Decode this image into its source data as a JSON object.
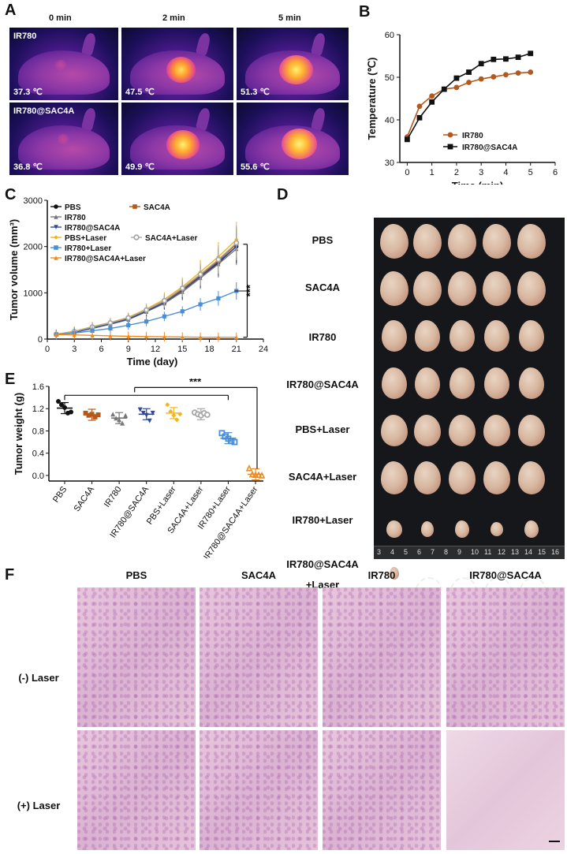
{
  "panels": {
    "A": "A",
    "B": "B",
    "C": "C",
    "D": "D",
    "E": "E",
    "F": "F"
  },
  "panelA": {
    "col_headers": [
      "0 min",
      "2 min",
      "5 min"
    ],
    "row_labels": [
      "IR780",
      "IR780@SAC4A"
    ],
    "temps": [
      [
        "37.3 ℃",
        "47.5 ℃",
        "51.3 ℃"
      ],
      [
        "36.8 ℃",
        "49.9 ℃",
        "55.6 ℃"
      ]
    ]
  },
  "chart_data": [
    {
      "type": "line",
      "panel": "B",
      "ylabel": "Temperature (℃)",
      "xlabel": "Time (min)",
      "xlim": [
        -0.3,
        6
      ],
      "ylim": [
        30,
        60
      ],
      "xticks": [
        "0",
        "1",
        "2",
        "3",
        "4",
        "5",
        "6"
      ],
      "yticks": [
        "30",
        "40",
        "50",
        "60"
      ],
      "x": [
        0,
        0.5,
        1,
        1.5,
        2,
        2.5,
        3,
        3.5,
        4,
        4.5,
        5
      ],
      "series": [
        {
          "name": "IR780",
          "color": "#b5581c",
          "marker": "circle",
          "values": [
            36.0,
            43.2,
            45.6,
            47.2,
            47.6,
            48.8,
            49.6,
            50.1,
            50.6,
            51.0,
            51.2
          ]
        },
        {
          "name": "IR780@SAC4A",
          "color": "#111111",
          "marker": "square",
          "values": [
            35.4,
            40.5,
            44.2,
            47.2,
            49.8,
            51.2,
            53.2,
            54.2,
            54.3,
            54.7,
            55.6
          ]
        }
      ],
      "legend": "bottom-right"
    },
    {
      "type": "line",
      "panel": "C",
      "ylabel": "Tumor volume (mm³)",
      "xlabel": "Time (day)",
      "xlim": [
        0,
        24
      ],
      "ylim": [
        0,
        3000
      ],
      "xticks": [
        "0",
        "3",
        "6",
        "9",
        "12",
        "15",
        "18",
        "21",
        "24"
      ],
      "yticks": [
        "0",
        "1000",
        "2000",
        "3000"
      ],
      "x": [
        1,
        3,
        5,
        7,
        9,
        11,
        13,
        15,
        17,
        19,
        21
      ],
      "series": [
        {
          "name": "PBS",
          "color": "#111111",
          "values": [
            100,
            150,
            240,
            330,
            430,
            600,
            780,
            1050,
            1350,
            1650,
            2000
          ]
        },
        {
          "name": "SAC4A",
          "color": "#b5581c",
          "values": [
            100,
            160,
            250,
            340,
            450,
            620,
            820,
            1080,
            1380,
            1700,
            2050
          ]
        },
        {
          "name": "IR780",
          "color": "#777777",
          "values": [
            100,
            150,
            230,
            320,
            420,
            590,
            770,
            1020,
            1320,
            1620,
            1950
          ]
        },
        {
          "name": "IR780@SAC4A",
          "color": "#2f4a9a",
          "values": [
            100,
            140,
            240,
            330,
            430,
            600,
            790,
            1050,
            1350,
            1670,
            2000
          ]
        },
        {
          "name": "PBS+Laser",
          "color": "#f2b51a",
          "values": [
            110,
            170,
            270,
            360,
            470,
            650,
            860,
            1130,
            1450,
            1780,
            2150
          ]
        },
        {
          "name": "SAC4A+Laser",
          "color": "#a8a8a8",
          "values": [
            100,
            160,
            260,
            350,
            460,
            630,
            830,
            1100,
            1400,
            1720,
            2080
          ]
        },
        {
          "name": "IR780+Laser",
          "color": "#4a8fd6",
          "values": [
            100,
            130,
            180,
            230,
            300,
            380,
            490,
            600,
            750,
            880,
            1040
          ]
        },
        {
          "name": "IR780@SAC4A+Laser",
          "color": "#f08a1e",
          "values": [
            100,
            90,
            80,
            70,
            60,
            55,
            50,
            45,
            40,
            40,
            40
          ]
        }
      ],
      "annotation": "***"
    },
    {
      "type": "scatter",
      "panel": "E",
      "ylabel": "Tumor weight (g)",
      "categories": [
        "PBS",
        "SAC4A",
        "IR780",
        "IR780@SAC4A",
        "PBS+Laser",
        "SAC4A+Laser",
        "IR780+Laser",
        "IR780@SAC4A+Laser"
      ],
      "yticks": [
        "0.0",
        "0.4",
        "0.8",
        "1.2",
        "1.6"
      ],
      "ylim": [
        -0.1,
        1.6
      ],
      "means": [
        1.21,
        1.09,
        1.03,
        1.1,
        1.12,
        1.1,
        0.67,
        0.02
      ],
      "points": [
        [
          1.33,
          1.27,
          1.22,
          1.12,
          1.14
        ],
        [
          1.12,
          1.08,
          1.1,
          1.05,
          1.09
        ],
        [
          1.1,
          1.03,
          1.0,
          0.94,
          1.08
        ],
        [
          1.18,
          1.12,
          1.08,
          0.98,
          1.12
        ],
        [
          1.27,
          1.15,
          1.08,
          1.0,
          1.1
        ],
        [
          1.13,
          1.1,
          1.08,
          1.12,
          1.09
        ],
        [
          0.76,
          0.7,
          0.66,
          0.62,
          0.6
        ],
        [
          0.13,
          0.02,
          0.01,
          0.01,
          0.0
        ]
      ],
      "colors": [
        "#111111",
        "#b5581c",
        "#777777",
        "#2f4a9a",
        "#f2b51a",
        "#a8a8a8",
        "#4a8fd6",
        "#f08a1e"
      ],
      "markers": [
        "circle",
        "square",
        "triangle",
        "inv-triangle",
        "diamond",
        "hex",
        "square-open",
        "triangle-open"
      ],
      "annotation": "***"
    }
  ],
  "panelD": {
    "rows": [
      "PBS",
      "SAC4A",
      "IR780",
      "IR780@SAC4A",
      "PBS+Laser",
      "SAC4A+Laser",
      "IR780+Laser",
      "IR780@SAC4A\n+Laser"
    ],
    "ruler": [
      "3",
      "4",
      "5",
      "6",
      "7",
      "8",
      "9",
      "10",
      "11",
      "12",
      "13",
      "14",
      "15",
      "16"
    ]
  },
  "panelF": {
    "col_headers": [
      "PBS",
      "SAC4A",
      "IR780",
      "IR780@SAC4A"
    ],
    "row_labels": [
      "(-) Laser",
      "(+) Laser"
    ]
  }
}
